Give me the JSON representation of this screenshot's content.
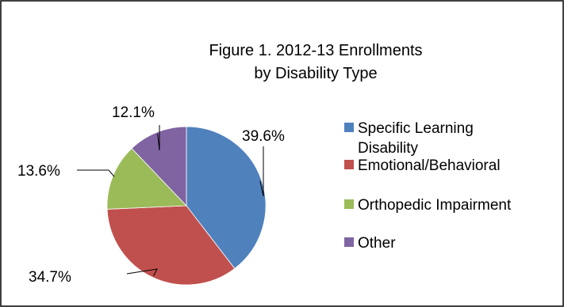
{
  "chart_data": {
    "type": "pie",
    "title_lines": [
      "Figure 1. 2012-13 Enrollments",
      "by Disability Type"
    ],
    "legend_position": "right",
    "slices": [
      {
        "label": "Specific Learning Disability",
        "label_lines": [
          "Specific Learning",
          "Disability"
        ],
        "value": 39.6,
        "display": "39.6%",
        "color": "#4f81bd"
      },
      {
        "label": "Emotional/Behavioral",
        "label_lines": [
          "Emotional/Behavioral"
        ],
        "value": 34.7,
        "display": "34.7%",
        "color": "#c0504d"
      },
      {
        "label": "Orthopedic Impairment",
        "label_lines": [
          "Orthopedic Impairment"
        ],
        "value": 13.6,
        "display": "13.6%",
        "color": "#9bbb59"
      },
      {
        "label": "Other",
        "label_lines": [
          "Other"
        ],
        "value": 12.1,
        "display": "12.1%",
        "color": "#8064a2"
      }
    ]
  }
}
